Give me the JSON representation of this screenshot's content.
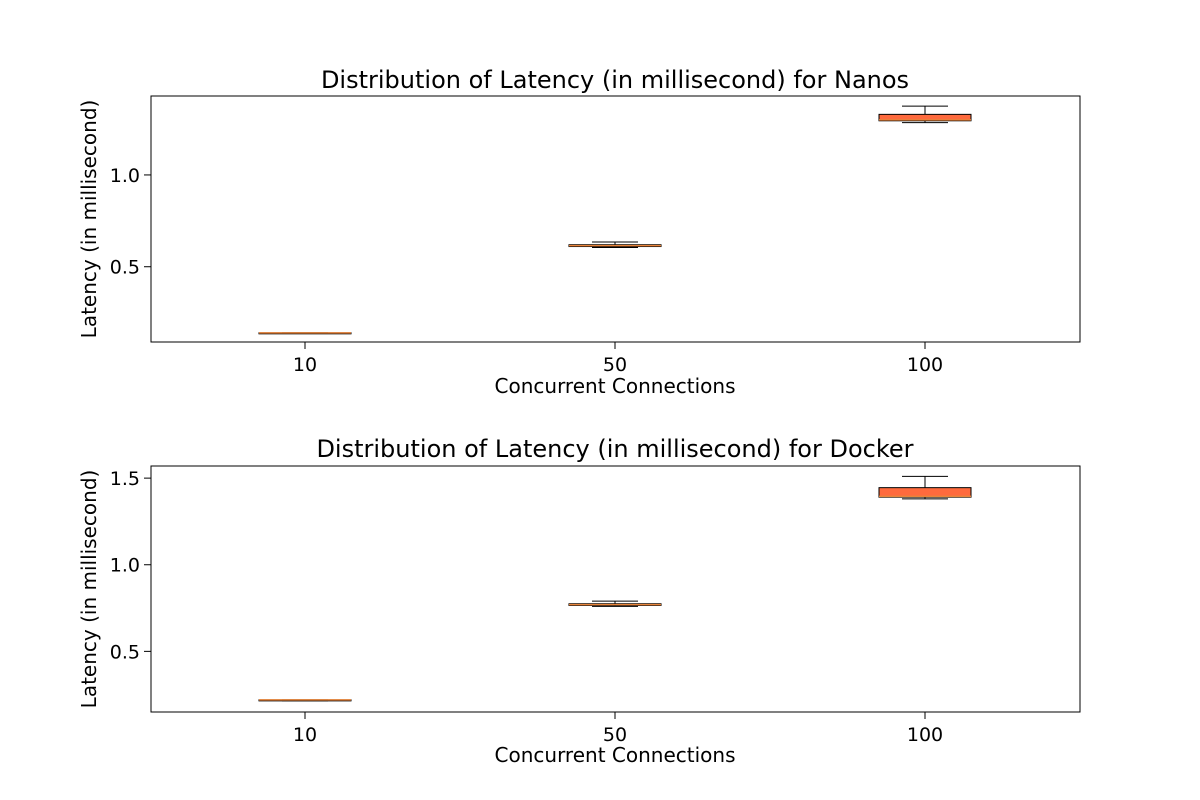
{
  "chart_data": [
    {
      "type": "boxplot",
      "title": "Distribution of Latency (in millisecond) for Nanos",
      "xlabel": "Concurrent Connections",
      "ylabel": "Latency (in millisecond)",
      "categories": [
        "10",
        "50",
        "100"
      ],
      "ylim": [
        0.09,
        1.43
      ],
      "yticks": [
        "0.5",
        "1.0"
      ],
      "yticks_values": [
        0.5,
        1.0
      ],
      "boxes": [
        {
          "category": "10",
          "whisker_low": 0.14,
          "q1": 0.14,
          "median": 0.14,
          "q3": 0.14,
          "whisker_high": 0.14
        },
        {
          "category": "50",
          "whisker_low": 0.605,
          "q1": 0.61,
          "median": 0.615,
          "q3": 0.62,
          "whisker_high": 0.635
        },
        {
          "category": "100",
          "whisker_low": 1.285,
          "q1": 1.295,
          "median": 1.3,
          "q3": 1.33,
          "whisker_high": 1.375
        }
      ],
      "box_color": "#FF6A3D",
      "median_color": "#E8843A",
      "grid": false
    },
    {
      "type": "boxplot",
      "title": "Distribution of Latency (in millisecond) for Docker",
      "xlabel": "Concurrent Connections",
      "ylabel": "Latency (in millisecond)",
      "categories": [
        "10",
        "50",
        "100"
      ],
      "ylim": [
        0.15,
        1.57
      ],
      "yticks": [
        "0.5",
        "1.0",
        "1.5"
      ],
      "yticks_values": [
        0.5,
        1.0,
        1.5
      ],
      "boxes": [
        {
          "category": "10",
          "whisker_low": 0.215,
          "q1": 0.215,
          "median": 0.22,
          "q3": 0.22,
          "whisker_high": 0.22
        },
        {
          "category": "50",
          "whisker_low": 0.76,
          "q1": 0.765,
          "median": 0.77,
          "q3": 0.775,
          "whisker_high": 0.79
        },
        {
          "category": "100",
          "whisker_low": 1.38,
          "q1": 1.39,
          "median": 1.395,
          "q3": 1.445,
          "whisker_high": 1.51
        }
      ],
      "box_color": "#FF6A3D",
      "median_color": "#E8843A",
      "grid": false
    }
  ]
}
